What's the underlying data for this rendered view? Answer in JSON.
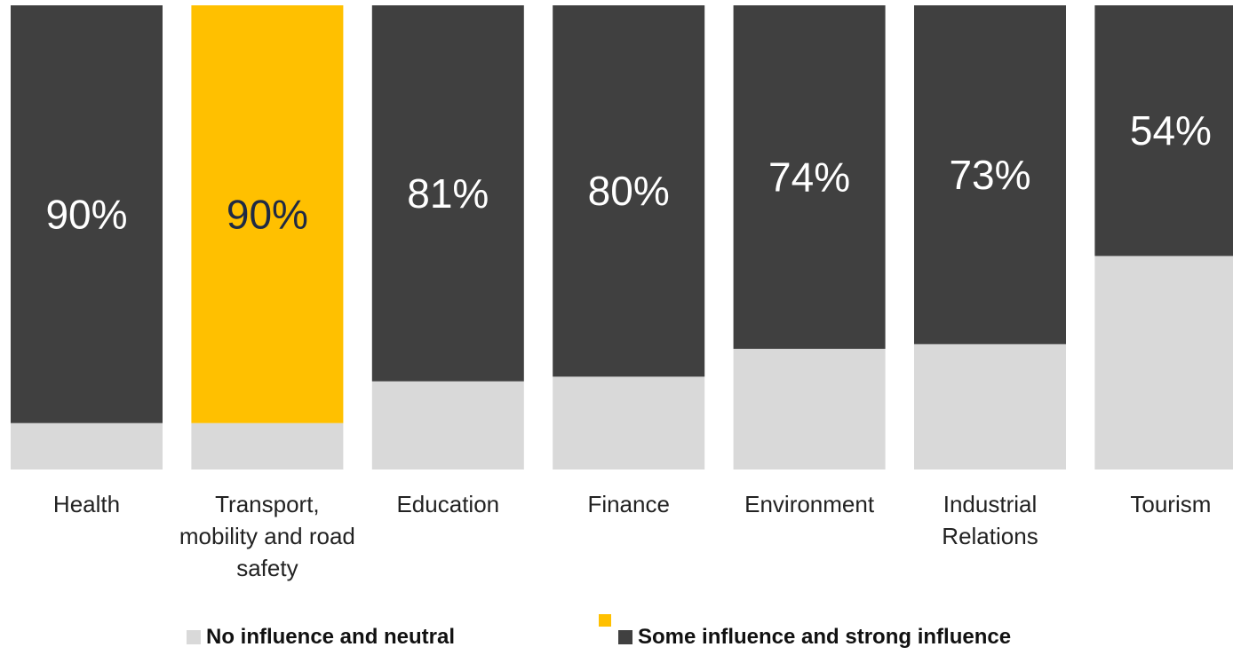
{
  "chart_data": {
    "type": "stacked_bar",
    "categories": [
      "Health",
      "Transport, mobility and road safety",
      "Education",
      "Finance",
      "Environment",
      "Industrial Relations",
      "Tourism"
    ],
    "series": [
      {
        "name": "No influence and neutral",
        "color": "#d9d9d9",
        "values": [
          10,
          10,
          19,
          20,
          26,
          27,
          46
        ]
      },
      {
        "name": "Some influence and strong influence",
        "color": "#404040",
        "values": [
          90,
          90,
          81,
          80,
          74,
          73,
          54
        ],
        "value_labels": [
          "90%",
          "90%",
          "81%",
          "80%",
          "74%",
          "73%",
          "54%"
        ],
        "colors": [
          "#404040",
          "#ffc000",
          "#404040",
          "#404040",
          "#404040",
          "#404040",
          "#404040"
        ],
        "label_colors": [
          "#ffffff",
          "#1f2a44",
          "#ffffff",
          "#ffffff",
          "#ffffff",
          "#ffffff",
          "#ffffff"
        ],
        "highlight_color": "#ffc000"
      }
    ],
    "ylim": [
      0,
      100
    ]
  }
}
